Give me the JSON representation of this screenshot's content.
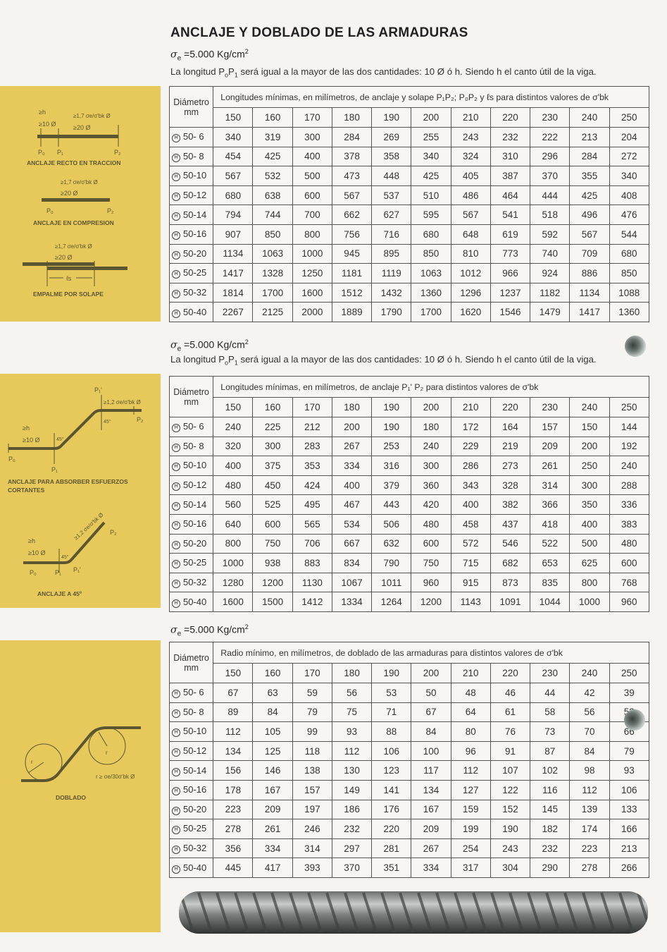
{
  "title": "ANCLAJE Y DOBLADO DE LAS ARMADURAS",
  "row_icon": "circled-h-icon",
  "row_icon_letter": "H",
  "sigma_symbol": "σ",
  "sigma_sub": "e",
  "sigma_value": " =5.000 Kg/cm",
  "sigma_exp": "2",
  "note": {
    "pre": "La longitud P",
    "s0": "o",
    "mid": "P",
    "s1": "1",
    "post": " será igual a la mayor de las dos cantidades: 10 Ø ó h. Siendo h el canto útil de la viga."
  },
  "diam_header": [
    "Diámetro",
    "mm"
  ],
  "columns": [
    "150",
    "160",
    "170",
    "180",
    "190",
    "200",
    "210",
    "220",
    "230",
    "240",
    "250"
  ],
  "rows": [
    "50- 6",
    "50- 8",
    "50-10",
    "50-12",
    "50-14",
    "50-16",
    "50-20",
    "50-25",
    "50-32",
    "50-40"
  ],
  "tables": [
    {
      "header": "Longitudes mínimas, en milímetros, de anclaje y solape P₁P₂; P₀P₂ y ℓs para distintos valores de σ'bk",
      "values": [
        [
          340,
          319,
          300,
          284,
          269,
          255,
          243,
          232,
          222,
          213,
          204
        ],
        [
          454,
          425,
          400,
          378,
          358,
          340,
          324,
          310,
          296,
          284,
          272
        ],
        [
          567,
          532,
          500,
          473,
          448,
          425,
          405,
          387,
          370,
          355,
          340
        ],
        [
          680,
          638,
          600,
          567,
          537,
          510,
          486,
          464,
          444,
          425,
          408
        ],
        [
          794,
          744,
          700,
          662,
          627,
          595,
          567,
          541,
          518,
          496,
          476
        ],
        [
          907,
          850,
          800,
          756,
          716,
          680,
          648,
          619,
          592,
          567,
          544
        ],
        [
          1134,
          1063,
          1000,
          945,
          895,
          850,
          810,
          773,
          740,
          709,
          680
        ],
        [
          1417,
          1328,
          1250,
          1181,
          1119,
          1063,
          1012,
          966,
          924,
          886,
          850
        ],
        [
          1814,
          1700,
          1600,
          1512,
          1432,
          1360,
          1296,
          1237,
          1182,
          1134,
          1088
        ],
        [
          2267,
          2125,
          2000,
          1889,
          1790,
          1700,
          1620,
          1546,
          1479,
          1417,
          1360
        ]
      ]
    },
    {
      "header": "Longitudes mínimas, en milímetros, de anclaje P₁' P₂ para distintos valores de σ'bk",
      "values": [
        [
          240,
          225,
          212,
          200,
          190,
          180,
          172,
          164,
          157,
          150,
          144
        ],
        [
          320,
          300,
          283,
          267,
          253,
          240,
          229,
          219,
          209,
          200,
          192
        ],
        [
          400,
          375,
          353,
          334,
          316,
          300,
          286,
          273,
          261,
          250,
          240
        ],
        [
          480,
          450,
          424,
          400,
          379,
          360,
          343,
          328,
          314,
          300,
          288
        ],
        [
          560,
          525,
          495,
          467,
          443,
          420,
          400,
          382,
          366,
          350,
          336
        ],
        [
          640,
          600,
          565,
          534,
          506,
          480,
          458,
          437,
          418,
          400,
          383
        ],
        [
          800,
          750,
          706,
          667,
          632,
          600,
          572,
          546,
          522,
          500,
          480
        ],
        [
          1000,
          938,
          883,
          834,
          790,
          750,
          715,
          682,
          653,
          625,
          600
        ],
        [
          1280,
          1200,
          1130,
          1067,
          1011,
          960,
          915,
          873,
          835,
          800,
          768
        ],
        [
          1600,
          1500,
          1412,
          1334,
          1264,
          1200,
          1143,
          1091,
          1044,
          1000,
          960
        ]
      ]
    },
    {
      "header": "Radio mínimo, en milímetros, de doblado de las armaduras para distintos valores de σ'bk",
      "values": [
        [
          67,
          63,
          59,
          56,
          53,
          50,
          48,
          46,
          44,
          42,
          39
        ],
        [
          89,
          84,
          79,
          75,
          71,
          67,
          64,
          61,
          58,
          56,
          53
        ],
        [
          112,
          105,
          99,
          93,
          88,
          84,
          80,
          76,
          73,
          70,
          66
        ],
        [
          134,
          125,
          118,
          112,
          106,
          100,
          96,
          91,
          87,
          84,
          79
        ],
        [
          156,
          146,
          138,
          130,
          123,
          117,
          112,
          107,
          102,
          98,
          93
        ],
        [
          178,
          167,
          157,
          149,
          141,
          134,
          127,
          122,
          116,
          112,
          106
        ],
        [
          223,
          209,
          197,
          186,
          176,
          167,
          159,
          152,
          145,
          139,
          133
        ],
        [
          278,
          261,
          246,
          232,
          220,
          209,
          199,
          190,
          182,
          174,
          166
        ],
        [
          356,
          334,
          314,
          297,
          281,
          267,
          254,
          243,
          232,
          223,
          213
        ],
        [
          445,
          417,
          393,
          370,
          351,
          334,
          317,
          304,
          290,
          278,
          266
        ]
      ]
    }
  ],
  "diagrams": {
    "recto": {
      "caption": "ANCLAJE RECTO EN TRACCION",
      "h": "≥h",
      "d10": "≥10 Ø",
      "f17": "≥1,7 σe/σ'bk Ø",
      "d20": "≥20 Ø",
      "p0": "P₀",
      "p1": "P₁",
      "p2": "P₂"
    },
    "compresion": {
      "caption": "ANCLAJE EN COMPRESION",
      "f17": "≥1,7 σe/σ'bk Ø",
      "d20": "≥20 Ø",
      "p0": "P₀",
      "p2": "P₂"
    },
    "solape": {
      "caption": "EMPALME POR SOLAPE",
      "f17": "≥1,7 σe/σ'bk Ø",
      "d20": "≥20 Ø",
      "ls": "ℓs"
    },
    "cortantes": {
      "caption1": "ANCLAJE PARA ABSORBER ESFUERZOS",
      "caption2": "CORTANTES",
      "h": "≥h",
      "d10": "≥10 Ø",
      "f12": "≥1,2 σe/σ'bk Ø",
      "a45": "45°",
      "p0": "P₀",
      "p1": "P₁",
      "p1p": "P₁'",
      "p2": "P₂"
    },
    "a45": {
      "caption": "ANCLAJE A 45º",
      "h": "≥h",
      "d10": "≥10 Ø",
      "f12": "≥1,2 σe/σ'bk Ø",
      "a45": "45°",
      "p0": "P₀",
      "p1": "P₁",
      "p1p": "P₁'",
      "p2": "P₂"
    },
    "doblado": {
      "caption": "DOBLADO",
      "r": "r",
      "rmin": "r ≥ σe/30σ'bk Ø"
    }
  },
  "colors": {
    "panel": "#e7c85a",
    "ink": "#5c5630"
  }
}
